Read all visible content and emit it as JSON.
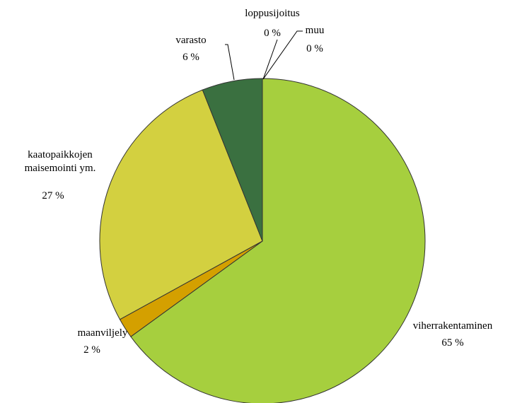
{
  "chart_data": {
    "type": "pie",
    "categories": [
      "viherrakentaminen",
      "maanviljely",
      "kaatopaikkojen maisemointi ym.",
      "varasto",
      "loppusijoitus",
      "muu"
    ],
    "values": [
      65,
      2,
      27,
      6,
      0,
      0
    ],
    "value_labels": [
      "65 %",
      "2 %",
      "27 %",
      "6 %",
      "0 %",
      "0 %"
    ],
    "colors": [
      "#a6cf3e",
      "#d4a000",
      "#d3d040",
      "#3a7040",
      "#5a8a30",
      "#8aaa40"
    ]
  }
}
